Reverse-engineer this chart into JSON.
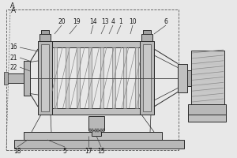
{
  "bg_color": "#e8e8e8",
  "line_color": "#2a2a2a",
  "label_color": "#1a1a1a",
  "figsize": [
    3.0,
    2.0
  ],
  "dpi": 100
}
